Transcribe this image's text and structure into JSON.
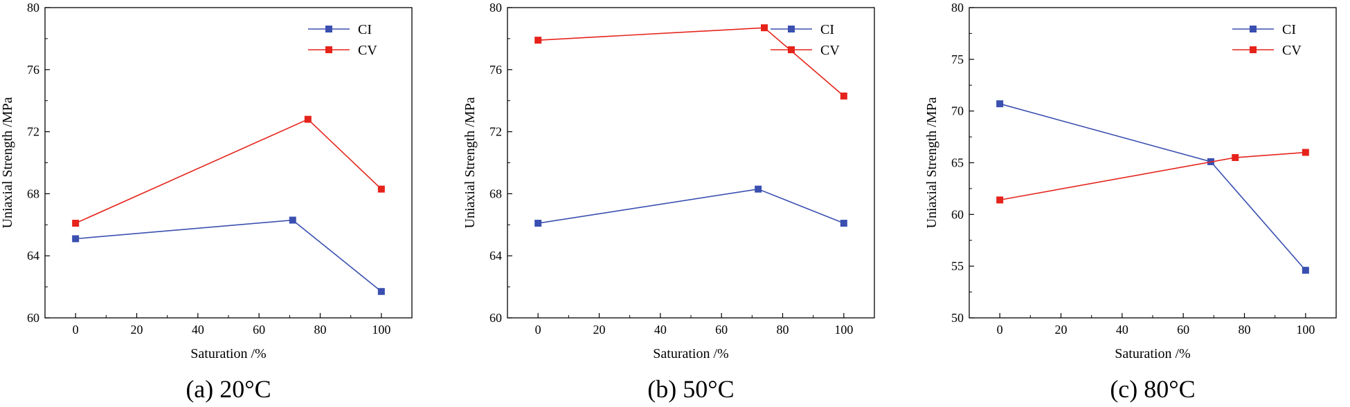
{
  "chart_data": [
    {
      "type": "line",
      "caption": "(a) 20°C",
      "xlabel": "Saturation /%",
      "ylabel": "Uniaxial Strength /MPa",
      "xlim": [
        -10,
        110
      ],
      "ylim": [
        60,
        80
      ],
      "xticks": [
        0,
        20,
        40,
        60,
        80,
        100
      ],
      "yticks": [
        60,
        64,
        68,
        72,
        76,
        80
      ],
      "legend_position": "top-right",
      "series": [
        {
          "name": "CI",
          "color": "#3a4fb0",
          "points": [
            [
              0,
              65.1
            ],
            [
              71,
              66.3
            ],
            [
              100,
              61.7
            ]
          ]
        },
        {
          "name": "CV",
          "color": "#e5231b",
          "points": [
            [
              0,
              66.1
            ],
            [
              76,
              72.8
            ],
            [
              100,
              68.3
            ]
          ]
        }
      ]
    },
    {
      "type": "line",
      "caption": "(b) 50°C",
      "xlabel": "Saturation /%",
      "ylabel": "Uniaxial Strength /MPa",
      "xlim": [
        -10,
        110
      ],
      "ylim": [
        60,
        80
      ],
      "xticks": [
        0,
        20,
        40,
        60,
        80,
        100
      ],
      "yticks": [
        60,
        64,
        68,
        72,
        76,
        80
      ],
      "legend_position": "top-right",
      "series": [
        {
          "name": "CI",
          "color": "#3a4fb0",
          "points": [
            [
              0,
              66.1
            ],
            [
              72,
              68.3
            ],
            [
              100,
              66.1
            ]
          ]
        },
        {
          "name": "CV",
          "color": "#e5231b",
          "points": [
            [
              0,
              77.9
            ],
            [
              74,
              78.7
            ],
            [
              100,
              74.3
            ]
          ]
        }
      ]
    },
    {
      "type": "line",
      "caption": "(c) 80°C",
      "xlabel": "Saturation /%",
      "ylabel": "Uniaxial Strength /MPa",
      "xlim": [
        -10,
        110
      ],
      "ylim": [
        50,
        80
      ],
      "xticks": [
        0,
        20,
        40,
        60,
        80,
        100
      ],
      "yticks": [
        50,
        55,
        60,
        65,
        70,
        75,
        80
      ],
      "legend_position": "top-right",
      "series": [
        {
          "name": "CI",
          "color": "#3a4fb0",
          "points": [
            [
              0,
              70.7
            ],
            [
              69,
              65.1
            ],
            [
              100,
              54.6
            ]
          ]
        },
        {
          "name": "CV",
          "color": "#e5231b",
          "points": [
            [
              0,
              61.4
            ],
            [
              77,
              65.5
            ],
            [
              100,
              66.0
            ]
          ]
        }
      ]
    }
  ]
}
